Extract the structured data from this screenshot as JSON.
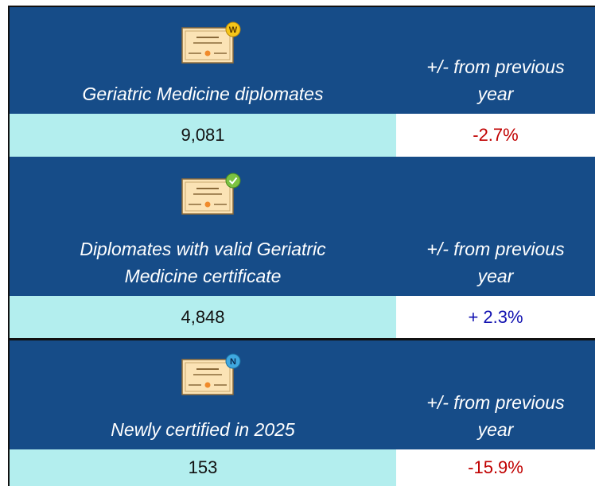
{
  "sections": [
    {
      "badge": "W",
      "title": "Geriatric Medicine diplomates",
      "change_label": "+/- from previous year",
      "value": "9,081",
      "change": "-2.7%"
    },
    {
      "title": "Diplomates with valid Geriatric Medicine certificate",
      "change_label": "+/- from previous year",
      "value": "4,848",
      "change": "+ 2.3%"
    },
    {
      "badge": "N",
      "title": "Newly certified in 2025",
      "change_label": "+/- from previous year",
      "value": "153",
      "change": "-15.9%"
    }
  ]
}
